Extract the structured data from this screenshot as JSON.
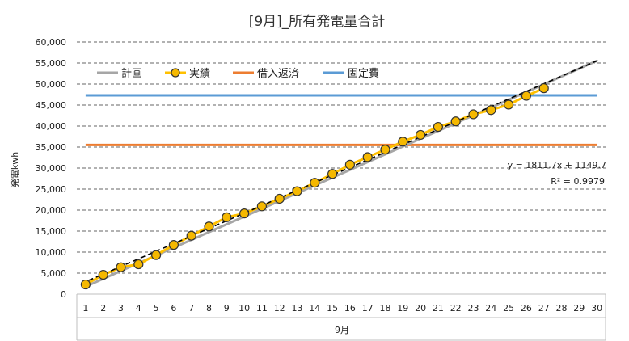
{
  "chart_data": {
    "type": "line",
    "title": "[9月]_所有発電量合計",
    "xlabel": "9月",
    "ylabel": "発電kwh",
    "ylim": [
      0,
      60000
    ],
    "x": [
      1,
      2,
      3,
      4,
      5,
      6,
      7,
      8,
      9,
      10,
      11,
      12,
      13,
      14,
      15,
      16,
      17,
      18,
      19,
      20,
      21,
      22,
      23,
      24,
      25,
      26,
      27,
      28,
      29,
      30
    ],
    "y_ticks": [
      "0",
      "5,000",
      "10,000",
      "15,000",
      "20,000",
      "25,000",
      "30,000",
      "35,000",
      "40,000",
      "45,000",
      "50,000",
      "55,000",
      "60,000"
    ],
    "grid": "horizontal dashed",
    "legend_position": "top-left",
    "series": [
      {
        "name": "計画",
        "color": "#a6a6a6",
        "style": "line",
        "x": [
          1,
          30
        ],
        "values": [
          1800,
          55500
        ]
      },
      {
        "name": "実績",
        "color": "#ffc000",
        "marker_color": "#f5b800",
        "style": "line-marker",
        "x": [
          1,
          2,
          3,
          4,
          5,
          6,
          7,
          8,
          9,
          10,
          11,
          12,
          13,
          14,
          15,
          16,
          17,
          18,
          19,
          20,
          21,
          22,
          23,
          24,
          25,
          26,
          27
        ],
        "values": [
          2300,
          4600,
          6400,
          7100,
          9300,
          11700,
          13900,
          16100,
          18300,
          19200,
          20900,
          22700,
          24500,
          26500,
          28600,
          30800,
          32600,
          34400,
          36300,
          37900,
          39800,
          41100,
          42800,
          43800,
          45100,
          47200,
          49000
        ]
      },
      {
        "name": "借入返済",
        "color": "#ed7d31",
        "style": "line",
        "x": [
          1,
          30
        ],
        "values": [
          35500,
          35500
        ]
      },
      {
        "name": "固定費",
        "color": "#5b9bd5",
        "style": "line",
        "x": [
          1,
          30
        ],
        "values": [
          47300,
          47300
        ]
      }
    ],
    "trendline": {
      "color": "#000000",
      "slope": 1811.7,
      "intercept": 1149.7,
      "equation": "y = 1811.7x + 1149.7",
      "r2": "R² = 0.9979"
    }
  }
}
